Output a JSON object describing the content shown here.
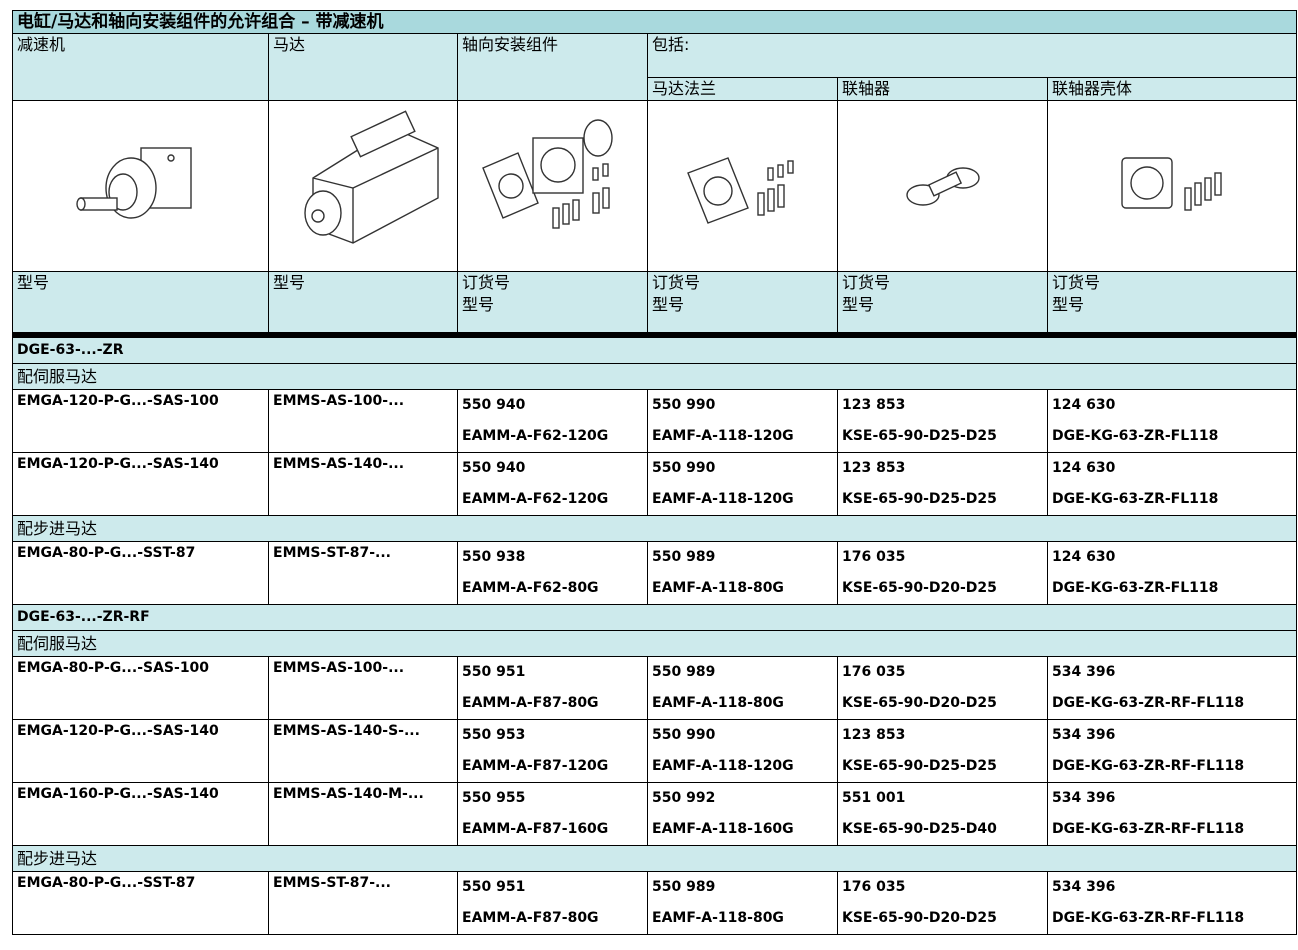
{
  "title": "电缸/马达和轴向安装组件的允许组合 – 带减速机",
  "columns": [
    "减速机",
    "马达",
    "轴向安装组件",
    "包括:"
  ],
  "sub_columns": [
    "马达法兰",
    "联轴器",
    "联轴器壳体"
  ],
  "type_row": [
    [
      "型号"
    ],
    [
      "型号"
    ],
    [
      "订货号",
      "型号"
    ],
    [
      "订货号",
      "型号"
    ],
    [
      "订货号",
      "型号"
    ],
    [
      "订货号",
      "型号"
    ]
  ],
  "sections": [
    {
      "label": "DGE-63-...-ZR",
      "groups": [
        {
          "label": "配伺服马达",
          "rows": [
            [
              "EMGA-120-P-G...-SAS-100",
              "EMMS-AS-100-...",
              "550 940",
              "EAMM-A-F62-120G",
              "550 990",
              "EAMF-A-118-120G",
              "123 853",
              "KSE-65-90-D25-D25",
              "124 630",
              "DGE-KG-63-ZR-FL118"
            ],
            [
              "EMGA-120-P-G...-SAS-140",
              "EMMS-AS-140-...",
              "550 940",
              "EAMM-A-F62-120G",
              "550 990",
              "EAMF-A-118-120G",
              "123 853",
              "KSE-65-90-D25-D25",
              "124 630",
              "DGE-KG-63-ZR-FL118"
            ]
          ]
        },
        {
          "label": "配步进马达",
          "rows": [
            [
              "EMGA-80-P-G...-SST-87",
              "EMMS-ST-87-...",
              "550 938",
              "EAMM-A-F62-80G",
              "550 989",
              "EAMF-A-118-80G",
              "176 035",
              "KSE-65-90-D20-D25",
              "124 630",
              "DGE-KG-63-ZR-FL118"
            ]
          ]
        }
      ]
    },
    {
      "label": "DGE-63-...-ZR-RF",
      "groups": [
        {
          "label": "配伺服马达",
          "rows": [
            [
              "EMGA-80-P-G...-SAS-100",
              "EMMS-AS-100-...",
              "550 951",
              "EAMM-A-F87-80G",
              "550 989",
              "EAMF-A-118-80G",
              "176 035",
              "KSE-65-90-D20-D25",
              "534 396",
              "DGE-KG-63-ZR-RF-FL118"
            ],
            [
              "EMGA-120-P-G...-SAS-140",
              "EMMS-AS-140-S-...",
              "550 953",
              "EAMM-A-F87-120G",
              "550 990",
              "EAMF-A-118-120G",
              "123 853",
              "KSE-65-90-D25-D25",
              "534 396",
              "DGE-KG-63-ZR-RF-FL118"
            ],
            [
              "EMGA-160-P-G...-SAS-140",
              "EMMS-AS-140-M-...",
              "550 955",
              "EAMM-A-F87-160G",
              "550 992",
              "EAMF-A-118-160G",
              "551 001",
              "KSE-65-90-D25-D40",
              "534 396",
              "DGE-KG-63-ZR-RF-FL118"
            ]
          ]
        },
        {
          "label": "配步进马达",
          "rows": [
            [
              "EMGA-80-P-G...-SST-87",
              "EMMS-ST-87-...",
              "550 951",
              "EAMM-A-F87-80G",
              "550 989",
              "EAMF-A-118-80G",
              "176 035",
              "KSE-65-90-D20-D25",
              "534 396",
              "DGE-KG-63-ZR-RF-FL118"
            ]
          ]
        }
      ]
    }
  ]
}
